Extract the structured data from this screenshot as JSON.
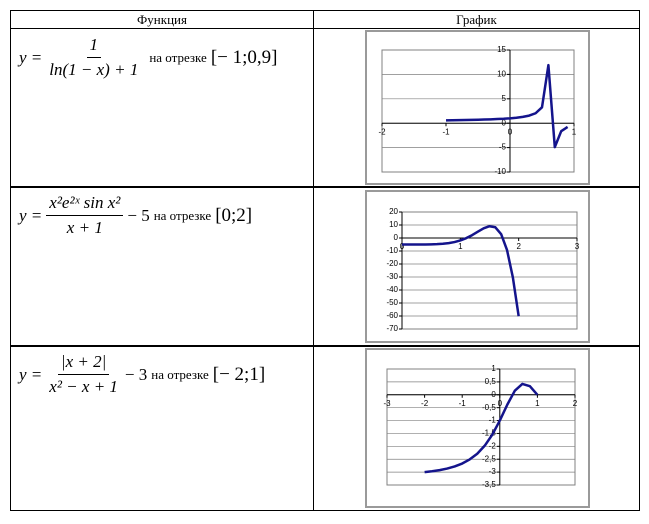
{
  "table": {
    "headers": [
      "Функция",
      "График"
    ],
    "rows": [
      {
        "lhs": "y =",
        "numerator": "1",
        "denominator": "ln(1 − x) + 1",
        "interval_text": "на отрезке",
        "interval": "[− 1;0,9]"
      },
      {
        "lhs": "y =",
        "numerator": "x²e²ˣ sin x²",
        "denominator": "x + 1",
        "tail": "− 5",
        "interval_text": "на отрезке",
        "interval": "[0;2]"
      },
      {
        "lhs": "y =",
        "numerator": "|x + 2|",
        "denominator": "x² − x + 1",
        "tail": "− 3",
        "interval_text": "на отрезке",
        "interval": "[− 2;1]"
      }
    ]
  },
  "chart_data": [
    {
      "type": "line",
      "color": "#14148c",
      "x": [
        -1,
        -0.9,
        -0.8,
        -0.7,
        -0.6,
        -0.5,
        -0.4,
        -0.3,
        -0.2,
        -0.1,
        0,
        0.1,
        0.2,
        0.3,
        0.4,
        0.5,
        0.6,
        0.7,
        0.8,
        0.9
      ],
      "values": [
        0.59,
        0.61,
        0.63,
        0.65,
        0.68,
        0.71,
        0.75,
        0.79,
        0.85,
        0.91,
        1,
        1.12,
        1.29,
        1.56,
        2.04,
        3.26,
        11.9,
        -4.9,
        -1.64,
        -0.77
      ],
      "xlim": [
        -2,
        1
      ],
      "ylim": [
        -10,
        15
      ],
      "xticks": [
        -2,
        -1,
        0,
        1
      ],
      "yticks": [
        -10,
        -5,
        0,
        5,
        10,
        15
      ],
      "grid": true
    },
    {
      "type": "line",
      "color": "#14148c",
      "x": [
        0,
        0.1,
        0.2,
        0.3,
        0.4,
        0.5,
        0.6,
        0.7,
        0.8,
        0.9,
        1,
        1.1,
        1.2,
        1.3,
        1.4,
        1.5,
        1.6,
        1.7,
        1.8,
        1.9,
        2
      ],
      "values": [
        -5,
        -5,
        -5,
        -4.99,
        -4.96,
        -4.89,
        -4.74,
        -4.45,
        -3.95,
        -3.13,
        -1.89,
        -0.13,
        2.15,
        4.82,
        7.43,
        9.07,
        8.25,
        2.97,
        -9.17,
        -30.17,
        -60.1
      ],
      "xlim": [
        0,
        3
      ],
      "ylim": [
        -70,
        20
      ],
      "xticks": [
        0,
        1,
        2,
        3
      ],
      "yticks": [
        -70,
        -60,
        -50,
        -40,
        -30,
        -20,
        -10,
        0,
        10,
        20
      ],
      "grid": true
    },
    {
      "type": "line",
      "color": "#14148c",
      "x": [
        -2,
        -1.8,
        -1.6,
        -1.4,
        -1.2,
        -1,
        -0.8,
        -0.6,
        -0.4,
        -0.2,
        0,
        0.2,
        0.4,
        0.6,
        0.8,
        1
      ],
      "values": [
        -3,
        -2.967,
        -2.922,
        -2.862,
        -2.78,
        -2.667,
        -2.508,
        -2.286,
        -1.974,
        -1.548,
        -1,
        -0.381,
        0.158,
        0.421,
        0.333,
        0
      ],
      "xlim": [
        -3,
        2
      ],
      "ylim": [
        -3.5,
        1
      ],
      "xticks": [
        -3,
        -2,
        -1,
        0,
        1,
        2
      ],
      "yticks": [
        {
          "value": -3.5,
          "label": "-3,5"
        },
        -3,
        {
          "value": -2.5,
          "label": "-2,5"
        },
        -2,
        {
          "value": -1.5,
          "label": "-1,5"
        },
        -1,
        {
          "value": -0.5,
          "label": "-0,5"
        },
        0,
        {
          "value": 0.5,
          "label": "0,5"
        },
        1
      ],
      "grid": true
    }
  ]
}
